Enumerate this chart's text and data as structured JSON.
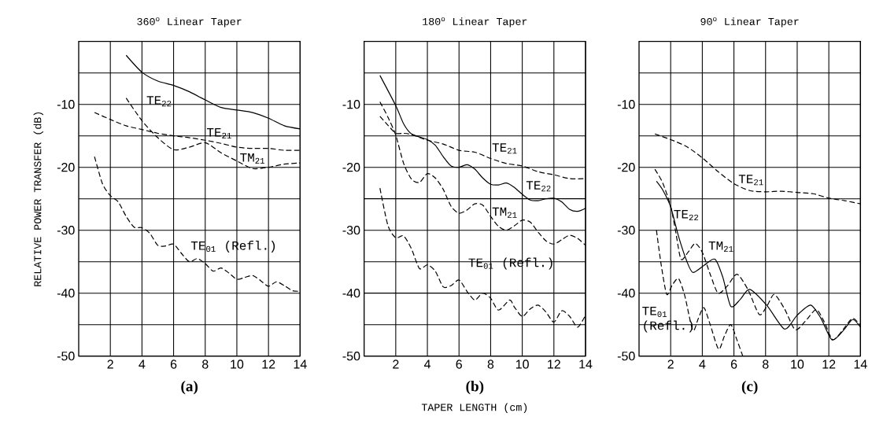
{
  "chart_data": [
    {
      "type": "line",
      "title": "360$^{o}$ Linear Taper",
      "ylabel": "RELATIVE POWER TRANSFER (dB)",
      "annotations": [
        "(a)"
      ],
      "xlim": [
        0,
        14
      ],
      "ylim": [
        -50,
        0
      ],
      "xticks": [
        2,
        4,
        6,
        8,
        10,
        12,
        14
      ],
      "yticks": [
        -50,
        {
          "value": -45,
          "label": null
        },
        -40,
        {
          "value": -35,
          "label": null
        },
        -30,
        {
          "value": -25,
          "label": null
        },
        -20,
        {
          "value": -15,
          "label": null
        },
        -10,
        {
          "value": -5,
          "label": null
        }
      ],
      "grid": true,
      "marker": "none",
      "series": [
        {
          "name": "TE$_{22}$",
          "color": "#000000",
          "line_style": "solid",
          "x": [
            3,
            4,
            5,
            6,
            7,
            8,
            9,
            10,
            11,
            12,
            13,
            14
          ],
          "values": [
            -2.2,
            -4.9,
            -6.3,
            -7.0,
            -8.0,
            -9.3,
            -10.5,
            -10.9,
            -11.3,
            -12.2,
            -13.4,
            -13.9
          ]
        },
        {
          "name": "TE$_{21}$",
          "color": "#000000",
          "line_style": "dashed",
          "x": [
            1,
            2,
            3,
            4,
            5,
            6,
            7,
            8,
            9,
            10,
            11,
            12,
            13,
            14
          ],
          "values": [
            -11.3,
            -12.4,
            -13.4,
            -14.0,
            -14.6,
            -15.0,
            -15.3,
            -15.7,
            -16.2,
            -16.8,
            -17.0,
            -17.0,
            -17.3,
            -17.3
          ]
        },
        {
          "name": "TM$_{21}$",
          "color": "#000000",
          "line_style": "dashed",
          "x": [
            3,
            4,
            5,
            6,
            7,
            8,
            9,
            10,
            11,
            12,
            13,
            14
          ],
          "values": [
            -9.0,
            -12.6,
            -15.3,
            -17.2,
            -16.8,
            -16.1,
            -17.7,
            -19.0,
            -20.2,
            -20.0,
            -19.5,
            -19.3
          ]
        },
        {
          "name": "TE$_{01}$ (Refl.)",
          "color": "#000000",
          "line_style": "dashed",
          "x": [
            1,
            1.5,
            2,
            2.5,
            3,
            3.5,
            4,
            4.5,
            5,
            5.5,
            6,
            6.5,
            7,
            7.5,
            8,
            8.5,
            9,
            9.5,
            10,
            10.5,
            11,
            11.5,
            12,
            12.5,
            13,
            13.5,
            14
          ],
          "values": [
            -18.3,
            -22.6,
            -24.5,
            -25.5,
            -27.8,
            -29.5,
            -29.6,
            -30.5,
            -32.4,
            -32.5,
            -32.2,
            -33.7,
            -35.0,
            -34.5,
            -35.3,
            -36.5,
            -36.0,
            -36.8,
            -37.8,
            -37.5,
            -37.2,
            -38.0,
            -38.9,
            -38.2,
            -38.8,
            -39.6,
            -39.7
          ]
        }
      ]
    },
    {
      "type": "line",
      "title": "180$^{o}$ Linear Taper",
      "xlabel": "TAPER LENGTH (cm)",
      "annotations": [
        "(b)"
      ],
      "xlim": [
        0,
        14
      ],
      "ylim": [
        -50,
        0
      ],
      "xticks": [
        2,
        4,
        6,
        8,
        10,
        12,
        14
      ],
      "yticks": [
        -50,
        {
          "value": -45,
          "label": null
        },
        -40,
        {
          "value": -35,
          "label": null
        },
        -30,
        {
          "value": -25,
          "label": null
        },
        -20,
        {
          "value": -15,
          "label": null
        },
        -10,
        {
          "value": -5,
          "label": null
        }
      ],
      "grid": true,
      "marker": "none",
      "series": [
        {
          "name": "TE$_{21}$",
          "color": "#000000",
          "line_style": "dashed",
          "x": [
            1,
            1.5,
            2,
            2.5,
            3,
            4,
            5,
            6,
            7,
            8,
            9,
            10,
            11,
            12,
            13,
            14
          ],
          "values": [
            -11.9,
            -13.3,
            -14.6,
            -14.6,
            -14.8,
            -15.7,
            -16.3,
            -17.3,
            -17.6,
            -18.6,
            -19.4,
            -19.8,
            -20.7,
            -21.2,
            -21.8,
            -21.8
          ]
        },
        {
          "name": "TE$_{22}$",
          "color": "#000000",
          "line_style": "solid",
          "x": [
            1,
            2,
            2.5,
            3,
            4,
            4.5,
            5,
            5.5,
            6,
            6.5,
            7,
            7.5,
            8,
            8.5,
            9,
            9.5,
            10,
            10.5,
            11,
            11.5,
            12,
            12.5,
            13,
            13.5,
            14
          ],
          "values": [
            -5.4,
            -10.2,
            -13.1,
            -14.7,
            -15.6,
            -16.5,
            -18.3,
            -19.8,
            -20.0,
            -19.6,
            -20.3,
            -21.7,
            -22.7,
            -22.8,
            -22.5,
            -23.2,
            -24.3,
            -25.2,
            -25.3,
            -25.0,
            -24.9,
            -25.5,
            -26.7,
            -27.0,
            -26.5
          ]
        },
        {
          "name": "TM$_{21}$",
          "color": "#000000",
          "line_style": "dashed",
          "x": [
            1,
            1.5,
            2,
            2.5,
            3,
            3.5,
            4,
            4.5,
            5,
            5.5,
            6,
            6.5,
            7,
            7.5,
            8,
            8.5,
            9,
            9.5,
            10,
            10.5,
            11,
            11.5,
            12,
            12.5,
            13,
            13.5,
            14
          ],
          "values": [
            -9.6,
            -12.0,
            -14.9,
            -19.4,
            -21.9,
            -22.4,
            -21.0,
            -21.7,
            -23.5,
            -26.2,
            -27.3,
            -26.8,
            -25.8,
            -26.0,
            -27.8,
            -29.4,
            -30.0,
            -29.3,
            -28.4,
            -28.7,
            -30.3,
            -31.7,
            -32.2,
            -31.5,
            -30.8,
            -31.3,
            -32.4
          ]
        },
        {
          "name": "TE$_{01}$ (Refl.)",
          "color": "#000000",
          "line_style": "dashed",
          "x": [
            1,
            1.5,
            2,
            2.5,
            3,
            3.5,
            4,
            4.5,
            5,
            5.5,
            6,
            6.5,
            7,
            7.5,
            8,
            8.5,
            9.2,
            9.5,
            10,
            10.5,
            11,
            11.5,
            12,
            12.5,
            13,
            13.5,
            14
          ],
          "values": [
            -23.3,
            -29.2,
            -31.2,
            -30.9,
            -33.0,
            -36.1,
            -35.5,
            -36.5,
            -39.0,
            -38.8,
            -37.9,
            -39.7,
            -41.1,
            -40.0,
            -40.8,
            -42.7,
            -41.1,
            -42.2,
            -43.7,
            -42.5,
            -41.9,
            -43.0,
            -44.6,
            -42.8,
            -43.7,
            -45.4,
            -43.5
          ]
        }
      ]
    },
    {
      "type": "line",
      "title": "90$^{o}$ Linear Taper",
      "annotations": [
        "(c)"
      ],
      "xlim": [
        0,
        14
      ],
      "ylim": [
        -50,
        0
      ],
      "xticks": [
        2,
        4,
        6,
        8,
        10,
        12,
        14
      ],
      "yticks": [
        -50,
        {
          "value": -45,
          "label": null
        },
        -40,
        {
          "value": -35,
          "label": null
        },
        -30,
        {
          "value": -25,
          "label": null
        },
        -20,
        {
          "value": -15,
          "label": null
        },
        -10,
        {
          "value": -5,
          "label": null
        }
      ],
      "grid": true,
      "marker": "none",
      "series": [
        {
          "name": "TE$_{21}$",
          "color": "#000000",
          "line_style": "dashed",
          "x": [
            1,
            2,
            3,
            4,
            5,
            6,
            7,
            8,
            9,
            10,
            11,
            12,
            13,
            14
          ],
          "values": [
            -14.7,
            -15.6,
            -16.7,
            -18.5,
            -20.7,
            -22.6,
            -23.7,
            -23.9,
            -23.8,
            -24.0,
            -24.2,
            -24.9,
            -25.3,
            -25.8
          ]
        },
        {
          "name": "TE$_{22}$",
          "color": "#000000",
          "line_style": "solid",
          "x": [
            1.1,
            1.5,
            2,
            2.5,
            3,
            3.4,
            4.1,
            4.8,
            5.3,
            5.8,
            6.4,
            7.0,
            8.1,
            9.2,
            10,
            10.85,
            11.5,
            12.2,
            12.9,
            13.5,
            14
          ],
          "values": [
            -22.2,
            -23.6,
            -26.3,
            -31.0,
            -34.8,
            -36.7,
            -35.6,
            -34.6,
            -37.5,
            -42.1,
            -41.0,
            -39.4,
            -42.0,
            -45.7,
            -43.5,
            -41.9,
            -44.0,
            -47.4,
            -46.0,
            -44.2,
            -45.4
          ]
        },
        {
          "name": "TM$_{21}$",
          "color": "#000000",
          "line_style": "dashed",
          "x": [
            1,
            1.5,
            2,
            2.3,
            2.65,
            3.1,
            3.55,
            4.0,
            4.5,
            5.0,
            5.6,
            6.2,
            6.9,
            7.6,
            8.1,
            8.55,
            9.2,
            9.87,
            10.5,
            11.2,
            11.7,
            12.25,
            12.9,
            13.5,
            14
          ],
          "values": [
            -20.3,
            -22.5,
            -26.2,
            -30.0,
            -34.6,
            -33.5,
            -32.1,
            -33.5,
            -37.0,
            -40.0,
            -38.8,
            -37.0,
            -39.5,
            -43.4,
            -42.0,
            -40.2,
            -42.5,
            -45.8,
            -44.5,
            -42.6,
            -44.5,
            -47.4,
            -45.8,
            -44.0,
            -45.1
          ]
        },
        {
          "name": "TE$_{01}$ (Refl.)",
          "color": "#000000",
          "line_style": "dashed",
          "x": [
            1.1,
            1.4,
            1.75,
            2.1,
            2.5,
            2.9,
            3.4,
            3.75,
            4.1,
            4.5,
            5.03,
            5.4,
            5.8,
            6.2,
            6.56
          ],
          "values": [
            -30.0,
            -35.5,
            -40.2,
            -38.7,
            -37.7,
            -40.5,
            -45.9,
            -44.0,
            -42.3,
            -45.0,
            -48.9,
            -46.8,
            -45.0,
            -47.5,
            -50.0
          ]
        }
      ]
    }
  ]
}
